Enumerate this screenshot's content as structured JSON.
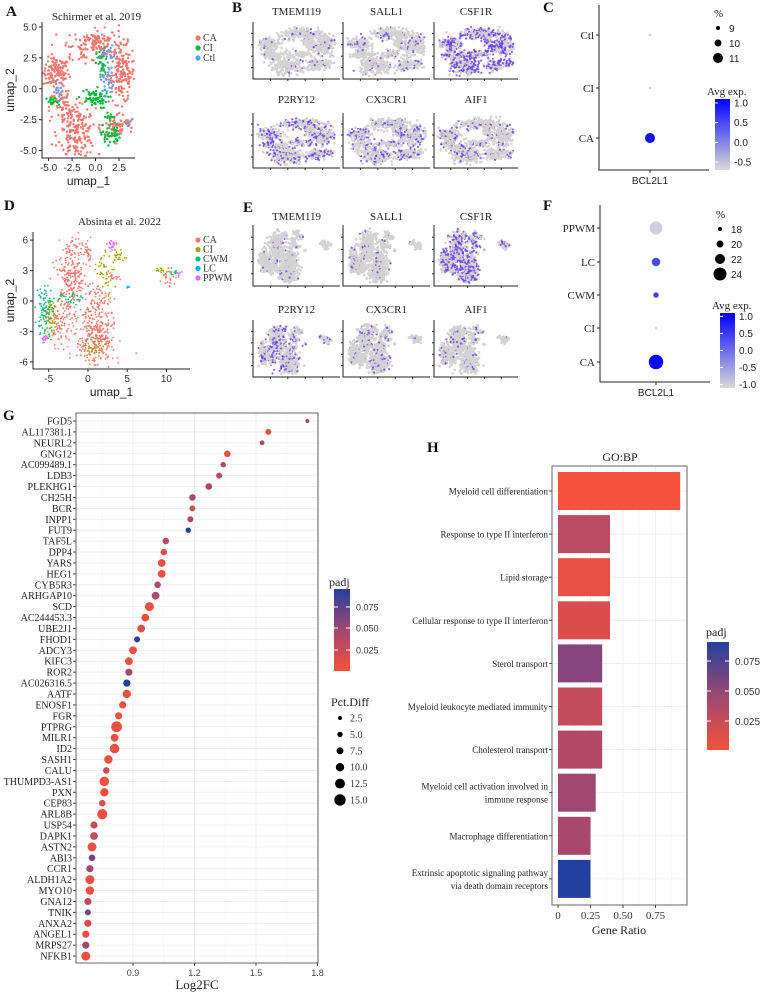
{
  "panels": {
    "A": "A",
    "B": "B",
    "C": "C",
    "D": "D",
    "E": "E",
    "F": "F",
    "G": "G",
    "H": "H"
  },
  "colors": {
    "CA": "#F8766D",
    "CI": "#00BA38",
    "Ctl": "#619CFF",
    "CA_D": "#F8766D",
    "CI_D": "#A3A500",
    "CWM": "#00BF7D",
    "LC": "#00B0F6",
    "PPWM": "#E76BF3",
    "feature_bg": "#D3D3D3",
    "feature_hi": "#6A3CF0",
    "avg_low": "#D9D9D9",
    "avg_high": "#0000FF",
    "padj_low": "#F5513B",
    "padj_mid": "#9E4872",
    "padj_high": "#24409E"
  },
  "chart_data": [
    {
      "id": "A",
      "type": "scatter",
      "title": "Schirmer et al. 2019",
      "xlabel": "umap_1",
      "ylabel": "umap_2",
      "xticks": [
        "-5.0",
        "-2.5",
        "0.0",
        "2.5"
      ],
      "yticks": [
        "5.0",
        "2.5",
        "0.0",
        "-2.5",
        "-5.0"
      ],
      "xlim": [
        -5.7,
        4.2
      ],
      "ylim": [
        -5.6,
        5.4
      ],
      "legend": [
        "CA",
        "CI",
        "Ctl"
      ],
      "legend_position": "right",
      "approx_clusters": {
        "CA": [
          [
            -4.2,
            1.3,
            0.7,
            0.6,
            120
          ],
          [
            0,
            3.8,
            1.2,
            0.5,
            120
          ],
          [
            2.8,
            1.2,
            0.7,
            1.2,
            160
          ],
          [
            -2.0,
            -3.6,
            1.0,
            1.0,
            180
          ],
          [
            -3.3,
            -1.5,
            0.8,
            0.8,
            60
          ],
          [
            2.4,
            -3.0,
            0.9,
            0.5,
            60
          ],
          [
            -1.5,
            3.0,
            1.2,
            0.5,
            30
          ]
        ],
        "CI": [
          [
            -0.3,
            -0.8,
            0.8,
            0.4,
            60
          ],
          [
            1.6,
            -3.7,
            0.5,
            0.4,
            50
          ],
          [
            0.7,
            2.0,
            0.3,
            0.6,
            30
          ],
          [
            -4.6,
            -1.1,
            0.3,
            0.2,
            20
          ],
          [
            1.6,
            -2.4,
            0.4,
            0.3,
            15
          ]
        ],
        "Ctl": [
          [
            1.1,
            2.9,
            0.4,
            0.3,
            25
          ],
          [
            1.3,
            0.7,
            0.4,
            0.6,
            30
          ],
          [
            -4,
            -0.3,
            0.3,
            0.4,
            15
          ],
          [
            3.4,
            -2.8,
            0.2,
            0.3,
            6
          ]
        ]
      }
    },
    {
      "id": "B",
      "type": "scatter",
      "genes": [
        "TMEM119",
        "SALL1",
        "CSF1R",
        "P2RY12",
        "CX3CR1",
        "AIF1"
      ],
      "expressing_fraction": [
        0.08,
        0.12,
        0.6,
        0.4,
        0.3,
        0.22
      ]
    },
    {
      "id": "C",
      "type": "dot",
      "x_categories": [
        "BCL2L1"
      ],
      "y_categories": [
        "Ctl",
        "CI",
        "CA"
      ],
      "pct": [
        8.5,
        8.5,
        11
      ],
      "avg_exp": [
        -0.6,
        -0.6,
        1.0
      ],
      "size_legend_title": "%",
      "size_legend": [
        "9",
        "10",
        "11"
      ],
      "color_legend_title": "Avg exp.",
      "color_ticks": [
        "1.0",
        "0.5",
        "0.0",
        "-0.5"
      ],
      "color_range": [
        -0.7,
        1.1
      ]
    },
    {
      "id": "D",
      "type": "scatter",
      "title": "Absinta et al. 2022",
      "xlabel": "umap_1",
      "ylabel": "umap_2",
      "xticks": [
        "-5",
        "0",
        "5",
        "10"
      ],
      "yticks": [
        "6",
        "3",
        "0",
        "-3",
        "-6"
      ],
      "xlim": [
        -7,
        13
      ],
      "ylim": [
        -6.7,
        6.8
      ],
      "legend": [
        "CA",
        "CI",
        "CWM",
        "LC",
        "PPWM"
      ],
      "legend_position": "right",
      "approx_clusters": {
        "CA": [
          [
            -2,
            2.5,
            1.0,
            1.8,
            250
          ],
          [
            1,
            -3.5,
            1.2,
            1.8,
            300
          ],
          [
            -3.5,
            -2.5,
            0.8,
            1.0,
            80
          ],
          [
            0,
            5,
            0.3,
            0.4,
            20
          ],
          [
            3.2,
            2.4,
            0.4,
            0.2,
            15
          ],
          [
            10.5,
            2.3,
            0.5,
            0.5,
            20
          ],
          [
            1.5,
            0,
            0.8,
            0.6,
            40
          ]
        ],
        "CI": [
          [
            -4.7,
            -1.5,
            0.5,
            0.8,
            50
          ],
          [
            2.2,
            3,
            0.6,
            1,
            40
          ],
          [
            4,
            4.5,
            0.4,
            0.3,
            20
          ],
          [
            1,
            -4.5,
            0.8,
            0.8,
            40
          ],
          [
            9.5,
            3,
            0.4,
            0.3,
            15
          ]
        ],
        "CWM": [
          [
            -5.5,
            -1,
            0.5,
            1.3,
            90
          ],
          [
            -2.5,
            0.3,
            1,
            0.3,
            30
          ],
          [
            11,
            2.8,
            0.3,
            0.15,
            10
          ]
        ],
        "LC": [
          [
            5.1,
            1.3,
            0.1,
            0.1,
            5
          ]
        ],
        "PPWM": [
          [
            3,
            5.5,
            0.3,
            0.3,
            20
          ],
          [
            -5.5,
            -3.7,
            0.3,
            0.2,
            15
          ],
          [
            11.5,
            2.6,
            0.2,
            0.2,
            6
          ]
        ]
      }
    },
    {
      "id": "E",
      "type": "scatter",
      "genes": [
        "TMEM119",
        "SALL1",
        "CSF1R",
        "P2RY12",
        "CX3CR1",
        "AIF1"
      ],
      "expressing_fraction": [
        0.08,
        0.08,
        0.5,
        0.3,
        0.2,
        0.1
      ]
    },
    {
      "id": "F",
      "type": "dot",
      "x_categories": [
        "BCL2L1"
      ],
      "y_categories": [
        "PPWM",
        "LC",
        "CWM",
        "CI",
        "CA"
      ],
      "pct": [
        24,
        21,
        19,
        17,
        25
      ],
      "avg_exp": [
        -1.0,
        0.35,
        0.45,
        -1.0,
        1.0
      ],
      "size_legend_title": "%",
      "size_legend": [
        "18",
        "20",
        "22",
        "24"
      ],
      "color_legend_title": "Avg exp.",
      "color_ticks": [
        "1.0",
        "0.5",
        "0.0",
        "-0.5",
        "-1.0"
      ],
      "color_range": [
        -1.1,
        1.1
      ]
    },
    {
      "id": "G",
      "type": "scatter",
      "xlabel": "Log2FC",
      "xticks": [
        "0.9",
        "1.2",
        "1.5",
        "1.8"
      ],
      "xlim": [
        0.62,
        1.8
      ],
      "genes": [
        "FGD5",
        "AL117381.1",
        "NEURL2",
        "GNG12",
        "AC099489.1",
        "LDB3",
        "PLEKHG1",
        "CH25H",
        "BCR",
        "INPP1",
        "FUT9",
        "TAF5L",
        "DPP4",
        "YARS",
        "HEG1",
        "CYB5R3",
        "ARHGAP10",
        "SCD",
        "AC244453.3",
        "UBE2J1",
        "FHOD1",
        "ADCY3",
        "KIFC3",
        "ROR2",
        "AC026316.5",
        "AATF",
        "ENOSF1",
        "FGR",
        "PTPRG",
        "MILR1",
        "ID2",
        "SASH1",
        "CALU",
        "THUMPD3-AS1",
        "PXN",
        "CEP83",
        "ARL8B",
        "USP54",
        "DAPK1",
        "ASTN2",
        "ABI3",
        "CCR1",
        "ALDH1A2",
        "MYO10",
        "GNA12",
        "TNIK",
        "ANXA2",
        "ANGEL1",
        "MRPS27",
        "NFKB1"
      ],
      "log2fc": [
        1.75,
        1.56,
        1.53,
        1.36,
        1.34,
        1.32,
        1.27,
        1.19,
        1.19,
        1.18,
        1.17,
        1.06,
        1.05,
        1.04,
        1.04,
        1.02,
        1.01,
        0.98,
        0.96,
        0.94,
        0.92,
        0.9,
        0.88,
        0.88,
        0.87,
        0.87,
        0.85,
        0.83,
        0.82,
        0.81,
        0.81,
        0.78,
        0.77,
        0.76,
        0.76,
        0.75,
        0.75,
        0.71,
        0.71,
        0.7,
        0.7,
        0.69,
        0.69,
        0.69,
        0.68,
        0.68,
        0.68,
        0.67,
        0.67,
        0.67
      ],
      "pct_diff": [
        2.5,
        6,
        4,
        7,
        5,
        6,
        7,
        7,
        6,
        6,
        5,
        7,
        7,
        9,
        9,
        7,
        9,
        11,
        9,
        9,
        6,
        9,
        9,
        8,
        8,
        10,
        8,
        8,
        14,
        9,
        12,
        10,
        7,
        12,
        10,
        7,
        13,
        8,
        9,
        11,
        7,
        8,
        11,
        10,
        8,
        6,
        8,
        8,
        8,
        11
      ],
      "padj": [
        0.045,
        0.01,
        0.045,
        0.01,
        0.045,
        0.035,
        0.045,
        0.045,
        0.025,
        0.04,
        0.09,
        0.035,
        0.015,
        0.01,
        0.01,
        0.04,
        0.04,
        0.01,
        0.01,
        0.015,
        0.09,
        0.01,
        0.01,
        0.045,
        0.09,
        0.01,
        0.01,
        0.01,
        0.01,
        0.015,
        0.01,
        0.01,
        0.025,
        0.01,
        0.01,
        0.02,
        0.01,
        0.03,
        0.03,
        0.01,
        0.065,
        0.045,
        0.01,
        0.01,
        0.035,
        0.065,
        0.02,
        0.015,
        0.05,
        0.01
      ],
      "color_legend_title": "padj",
      "color_ticks": [
        "0.075",
        "0.050",
        "0.025"
      ],
      "size_legend_title": "Pct.Diff",
      "size_legend": [
        "2.5",
        "5.0",
        "7.5",
        "10.0",
        "12.5",
        "15.0"
      ]
    },
    {
      "id": "H",
      "type": "bar",
      "title": "GO:BP",
      "xlabel": "Gene Ratio",
      "xticks": [
        "0",
        "0.25",
        "0.50",
        "0.75"
      ],
      "xlim": [
        -0.04,
        1.0
      ],
      "categories": [
        "Myeloid cell differentiation",
        "Response to type II interferon",
        "Lipid storage",
        "Cellular response to type II interferon",
        "Sterol transport",
        "Myeloid leukocyte mediated immunity",
        "Cholesterol transport",
        "Myeloid cell activation involved in|immune response",
        "Macrophage differentiation",
        "Extrinsic apoptotic signaling pathway|via death domain receptors"
      ],
      "values": [
        0.94,
        0.4,
        0.4,
        0.4,
        0.34,
        0.34,
        0.34,
        0.29,
        0.25,
        0.25
      ],
      "padj": [
        0.005,
        0.035,
        0.012,
        0.018,
        0.058,
        0.03,
        0.04,
        0.05,
        0.045,
        0.09
      ],
      "color_legend_title": "padj",
      "color_ticks": [
        "0.075",
        "0.050",
        "0.025"
      ]
    }
  ]
}
